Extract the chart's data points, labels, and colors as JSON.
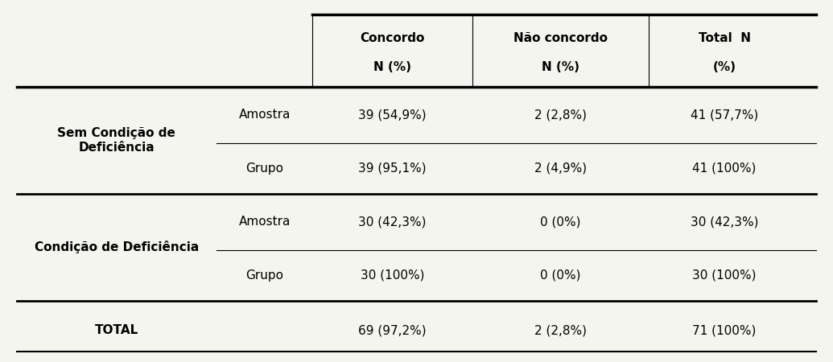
{
  "col_headers": [
    [
      "Concordo",
      "N (%)"
    ],
    [
      "Não concordo",
      "N (%)"
    ],
    [
      "Total  N",
      "(%)"
    ]
  ],
  "rows": [
    {
      "group": "Sem Condição de\nDeficiência",
      "subrow": "Amostra",
      "concordo": "39 (54,9%)",
      "nao_concordo": "2 (2,8%)",
      "total": "41 (57,7%)"
    },
    {
      "group": "",
      "subrow": "Grupo",
      "concordo": "39 (95,1%)",
      "nao_concordo": "2 (4,9%)",
      "total": "41 (100%)"
    },
    {
      "group": "Condição de Deficiência",
      "subrow": "Amostra",
      "concordo": "30 (42,3%)",
      "nao_concordo": "0 (0%)",
      "total": "30 (42,3%)"
    },
    {
      "group": "",
      "subrow": "Grupo",
      "concordo": "30 (100%)",
      "nao_concordo": "0 (0%)",
      "total": "30 (100%)"
    },
    {
      "group": "TOTAL",
      "subrow": "",
      "concordo": "69 (97,2%)",
      "nao_concordo": "2 (2,8%)",
      "total": "71 (100%)"
    }
  ],
  "bg_color": "#f5f5f0",
  "text_color": "#000000",
  "header_fontsize": 11,
  "cell_fontsize": 11,
  "group_fontsize": 11,
  "figure_width": 10.35,
  "figure_height": 4.5,
  "dpi": 100
}
